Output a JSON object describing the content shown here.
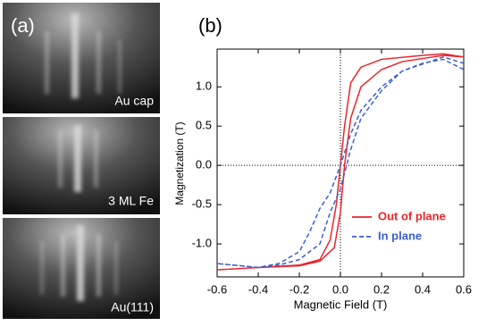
{
  "images": {
    "label": "(a)",
    "captions": [
      "Au cap",
      "3 ML Fe",
      "Au(111)"
    ]
  },
  "chart_data": {
    "type": "line",
    "panel_label": "(b)",
    "x_label": "Magnetic Field (T)",
    "y_label": "Magnetization (T)",
    "xlim": [
      -0.6,
      0.6
    ],
    "ylim": [
      -1.42,
      1.48
    ],
    "xticks": [
      -0.6,
      -0.4,
      -0.2,
      {
        "value": 0,
        "label": "0.0"
      },
      0.2,
      0.4,
      0.6
    ],
    "yticks": [
      {
        "value": -1,
        "label": "-1.0"
      },
      -0.5,
      {
        "value": 0,
        "label": "0.0"
      },
      0.5,
      {
        "value": 1,
        "label": "1.0"
      }
    ],
    "grid": false,
    "zero_lines": true,
    "legend": "lower right",
    "series": [
      {
        "name": "Out of plane",
        "color": "#e8262b",
        "dash": false,
        "x": [
          0.6,
          0.5,
          0.4,
          0.2,
          0.1,
          0.05,
          0.02,
          0,
          -0.02,
          -0.05,
          -0.1,
          -0.2,
          -0.4,
          -0.6,
          -0.4,
          -0.2,
          -0.1,
          -0.03,
          0,
          0.02,
          0.05,
          0.1,
          0.2,
          0.3,
          0.5,
          0.6
        ],
        "values": [
          1.38,
          1.42,
          1.4,
          1.35,
          1.25,
          1.05,
          0.5,
          0,
          -0.5,
          -0.95,
          -1.2,
          -1.27,
          -1.3,
          -1.33,
          -1.3,
          -1.28,
          -1.22,
          -1.05,
          -0.6,
          0,
          0.6,
          1,
          1.22,
          1.32,
          1.4,
          1.38
        ]
      },
      {
        "name": "In plane",
        "color": "#3a5fd0",
        "dash": true,
        "x": [
          0.6,
          0.5,
          0.4,
          0.3,
          0.2,
          0.1,
          0.05,
          0,
          -0.05,
          -0.1,
          -0.15,
          -0.2,
          -0.3,
          -0.4,
          -0.6,
          -0.4,
          -0.3,
          -0.2,
          -0.1,
          -0.05,
          0,
          0.05,
          0.1,
          0.2,
          0.3,
          0.5,
          0.6
        ],
        "values": [
          1.22,
          1.35,
          1.3,
          1.2,
          1,
          0.7,
          0.4,
          0,
          -0.35,
          -0.55,
          -0.85,
          -1.1,
          -1.25,
          -1.3,
          -1.25,
          -1.3,
          -1.27,
          -1.2,
          -1,
          -0.6,
          -0.3,
          0.2,
          0.6,
          0.95,
          1.2,
          1.38,
          1.3
        ]
      }
    ]
  }
}
